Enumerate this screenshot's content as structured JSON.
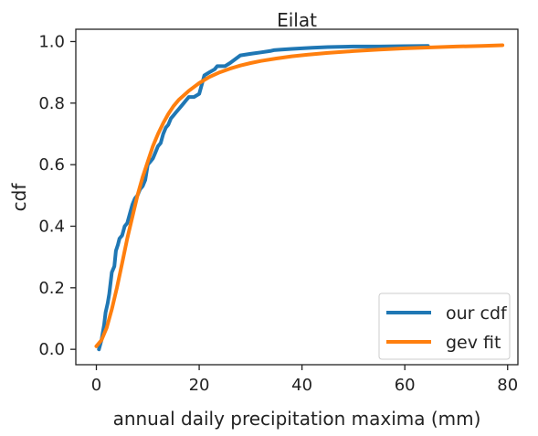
{
  "chart_data": {
    "type": "line",
    "title": "Eilat",
    "xlabel": "annual daily precipitation maxima (mm)",
    "ylabel": "cdf",
    "xlim": [
      -4,
      82
    ],
    "ylim": [
      -0.05,
      1.04
    ],
    "xticks": [
      0,
      20,
      40,
      60,
      80
    ],
    "yticks": [
      0.0,
      0.2,
      0.4,
      0.6,
      0.8,
      1.0
    ],
    "xtick_labels": [
      "0",
      "20",
      "40",
      "60",
      "80"
    ],
    "ytick_labels": [
      "0.0",
      "0.2",
      "0.4",
      "0.6",
      "0.8",
      "1.0"
    ],
    "grid": false,
    "legend_position": "lower-right",
    "series": [
      {
        "name": "our cdf",
        "color": "#1f77b4",
        "x": [
          0.5,
          1.0,
          1.5,
          1.8,
          2.2,
          2.5,
          3.0,
          3.5,
          3.8,
          4.2,
          4.5,
          5.0,
          5.5,
          6.0,
          6.5,
          7.0,
          7.5,
          8.0,
          8.5,
          9.0,
          9.5,
          10.0,
          10.5,
          11.0,
          11.5,
          12.0,
          12.5,
          13.0,
          13.5,
          14.0,
          14.5,
          15.0,
          15.5,
          16.0,
          16.5,
          17.0,
          17.5,
          18.0,
          19.0,
          20.0,
          21.0,
          22.0,
          23.0,
          23.5,
          24.0,
          25.0,
          26.0,
          28.0,
          30.0,
          32.0,
          34.0,
          34.5,
          36.0,
          38.0,
          40.0,
          42.0,
          45.0,
          50.0,
          55.0,
          60.0,
          64.5
        ],
        "y": [
          0.0,
          0.03,
          0.08,
          0.12,
          0.15,
          0.18,
          0.25,
          0.27,
          0.32,
          0.34,
          0.36,
          0.37,
          0.4,
          0.41,
          0.44,
          0.47,
          0.49,
          0.5,
          0.52,
          0.53,
          0.55,
          0.6,
          0.61,
          0.62,
          0.64,
          0.66,
          0.67,
          0.7,
          0.72,
          0.73,
          0.75,
          0.76,
          0.77,
          0.78,
          0.79,
          0.8,
          0.81,
          0.82,
          0.82,
          0.83,
          0.89,
          0.9,
          0.91,
          0.92,
          0.92,
          0.92,
          0.93,
          0.955,
          0.96,
          0.965,
          0.97,
          0.972,
          0.974,
          0.976,
          0.978,
          0.98,
          0.982,
          0.984,
          0.984,
          0.985,
          0.986
        ]
      },
      {
        "name": "gev fit",
        "color": "#ff7f0e",
        "x": [
          0,
          1,
          2,
          3,
          4,
          5,
          6,
          7,
          8,
          9,
          10,
          11,
          12,
          13,
          14,
          15,
          16,
          18,
          20,
          22,
          24,
          26,
          28,
          30,
          32,
          35,
          38,
          41,
          45,
          50,
          55,
          60,
          65,
          70,
          75,
          79
        ],
        "y": [
          0.01,
          0.03,
          0.07,
          0.13,
          0.2,
          0.28,
          0.36,
          0.43,
          0.5,
          0.56,
          0.61,
          0.66,
          0.7,
          0.735,
          0.765,
          0.79,
          0.81,
          0.84,
          0.865,
          0.885,
          0.9,
          0.912,
          0.922,
          0.93,
          0.937,
          0.945,
          0.952,
          0.957,
          0.963,
          0.969,
          0.974,
          0.978,
          0.981,
          0.984,
          0.986,
          0.988
        ]
      }
    ]
  }
}
